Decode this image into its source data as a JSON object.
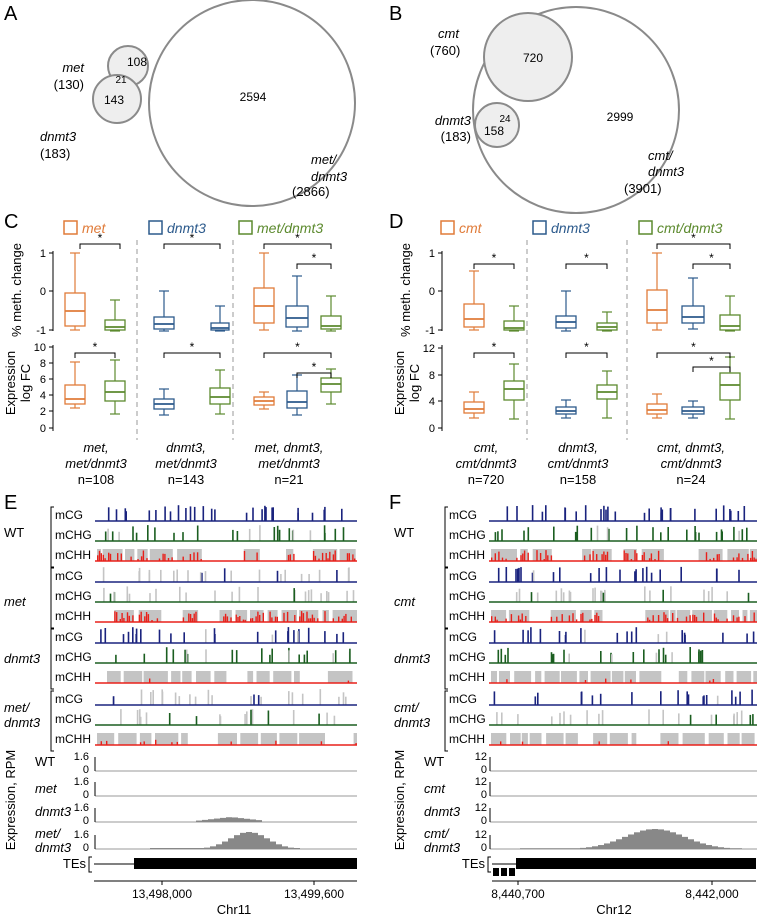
{
  "panels": {
    "A": {
      "letter": "A",
      "small1": {
        "name": "met",
        "count": "(130)",
        "unique": "108"
      },
      "small2": {
        "name": "dnmt3",
        "count": "(183)",
        "unique": "143"
      },
      "overlap": "21",
      "big": {
        "name1": "met/",
        "name2": "dnmt3",
        "count": "(2866)",
        "unique": "2594"
      }
    },
    "B": {
      "letter": "B",
      "small1": {
        "name": "cmt",
        "count": "(760)",
        "unique": "720"
      },
      "small2": {
        "name": "dnmt3",
        "count": "(183)",
        "unique": "158"
      },
      "overlap": "24",
      "big": {
        "name1": "cmt/",
        "name2": "dnmt3",
        "count": "(3901)",
        "unique": "2999"
      }
    },
    "C": {
      "letter": "C",
      "legend": [
        "met",
        "dnmt3",
        "met/dnmt3"
      ],
      "ylabel_meth": "% meth. change",
      "ylabel_expr": "Expression",
      "ylabel_expr2": "log FC",
      "meth_ticks": [
        "1",
        "0",
        "-1"
      ],
      "expr_ticks": [
        "10",
        "8",
        "6",
        "4",
        "2",
        "0"
      ],
      "groups": [
        {
          "line1": "met,",
          "line2": "met/dnmt3",
          "n": "n=108"
        },
        {
          "line1": "dnmt3,",
          "line2": "met/dnmt3",
          "n": "n=143"
        },
        {
          "line1": "met, dnmt3,",
          "line2": "met/dnmt3",
          "n": "n=21"
        }
      ],
      "sig": "*"
    },
    "D": {
      "letter": "D",
      "legend": [
        "cmt",
        "dnmt3",
        "cmt/dnmt3"
      ],
      "ylabel_meth": "% meth. change",
      "ylabel_expr": "Expression",
      "ylabel_expr2": "log FC",
      "meth_ticks": [
        "1",
        "0",
        "-1"
      ],
      "expr_ticks": [
        "12",
        "8",
        "4",
        "0"
      ],
      "groups": [
        {
          "line1": "cmt,",
          "line2": "cmt/dnmt3",
          "n": "n=720"
        },
        {
          "line1": "dnmt3,",
          "line2": "cmt/dnmt3",
          "n": "n=158"
        },
        {
          "line1": "cmt, dnmt3,",
          "line2": "cmt/dnmt3",
          "n": "n=24"
        }
      ],
      "sig": "*"
    },
    "E": {
      "letter": "E",
      "genotypes": [
        "WT",
        "met",
        "dnmt3",
        "met/",
        "dnmt3"
      ],
      "contexts": [
        "mCG",
        "mCHG",
        "mCHH"
      ],
      "expr_label": "Expression, RPM",
      "expr_rows": [
        {
          "name": "WT",
          "max": "1.6",
          "min": "0"
        },
        {
          "name": "met",
          "max": "1.6",
          "min": "0"
        },
        {
          "name": "dnmt3",
          "max": "1.6",
          "min": "0"
        },
        {
          "name": "met/",
          "name2": "dnmt3",
          "max": "1.6",
          "min": "0"
        }
      ],
      "tes_label": "TEs",
      "x_ticks": [
        "13,498,000",
        "13,499,600"
      ],
      "chrom": "Chr11"
    },
    "F": {
      "letter": "F",
      "genotypes": [
        "WT",
        "cmt",
        "dnmt3",
        "cmt/",
        "dnmt3"
      ],
      "contexts": [
        "mCG",
        "mCHG",
        "mCHH"
      ],
      "expr_label": "Expression, RPM",
      "expr_rows": [
        {
          "name": "WT",
          "max": "12",
          "min": "0"
        },
        {
          "name": "cmt",
          "max": "12",
          "min": "0"
        },
        {
          "name": "dnmt3",
          "max": "12",
          "min": "0"
        },
        {
          "name": "cmt/",
          "name2": "dnmt3",
          "max": "12",
          "min": "0"
        }
      ],
      "tes_label": "TEs",
      "x_ticks": [
        "8,440,700",
        "8,442,000"
      ],
      "chrom": "Chr12"
    }
  },
  "colors": {
    "orange": "#e07b39",
    "blue": "#2c5a8c",
    "green": "#5c8a2e",
    "mcg": "#1a237e",
    "mchg": "#1b5e20",
    "mchh": "#e8201a",
    "grey": "#c4c4c4",
    "circle": "#8a8a8a",
    "fill": "#eeeeee",
    "bar": "#888888"
  }
}
